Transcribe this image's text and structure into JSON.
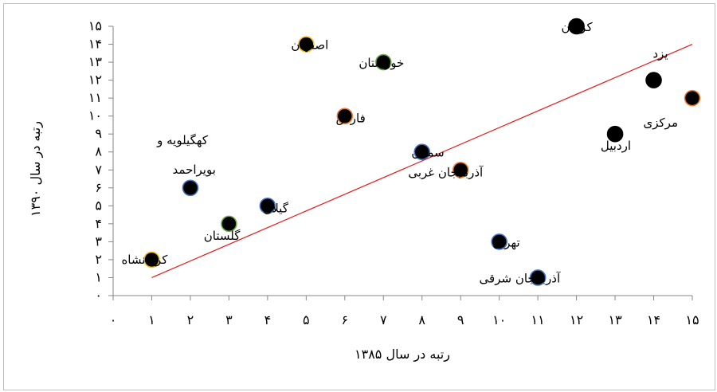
{
  "chart_data": {
    "type": "scatter",
    "title": "",
    "xlabel": "رتبه در سال ۱۳۸۵",
    "ylabel": "رتبه در سال ۱۳۹۰",
    "xlim": [
      0,
      15
    ],
    "ylim": [
      0,
      15
    ],
    "x_ticks": [
      {
        "value": 0,
        "label": "۰"
      },
      {
        "value": 1,
        "label": "۱"
      },
      {
        "value": 2,
        "label": "۲"
      },
      {
        "value": 3,
        "label": "۳"
      },
      {
        "value": 4,
        "label": "۴"
      },
      {
        "value": 5,
        "label": "۵"
      },
      {
        "value": 6,
        "label": "۶"
      },
      {
        "value": 7,
        "label": "۷"
      },
      {
        "value": 8,
        "label": "۸"
      },
      {
        "value": 9,
        "label": "۹"
      },
      {
        "value": 10,
        "label": "۱۰"
      },
      {
        "value": 11,
        "label": "۱۱"
      },
      {
        "value": 12,
        "label": "۱۲"
      },
      {
        "value": 13,
        "label": "۱۳"
      },
      {
        "value": 14,
        "label": "۱۴"
      },
      {
        "value": 15,
        "label": "۱۵"
      }
    ],
    "y_ticks": [
      {
        "value": 0,
        "label": "۰"
      },
      {
        "value": 1,
        "label": "۱"
      },
      {
        "value": 2,
        "label": "۲"
      },
      {
        "value": 3,
        "label": "۳"
      },
      {
        "value": 4,
        "label": "۴"
      },
      {
        "value": 5,
        "label": "۵"
      },
      {
        "value": 6,
        "label": "۶"
      },
      {
        "value": 7,
        "label": "۷"
      },
      {
        "value": 8,
        "label": "۸"
      },
      {
        "value": 9,
        "label": "۹"
      },
      {
        "value": 10,
        "label": "۱۰"
      },
      {
        "value": 11,
        "label": "۱۱"
      },
      {
        "value": 12,
        "label": "۱۲"
      },
      {
        "value": 13,
        "label": "۱۳"
      },
      {
        "value": 14,
        "label": "۱۴"
      },
      {
        "value": 15,
        "label": "۱۵"
      }
    ],
    "grid": false,
    "trendline": {
      "color": "#e31a1c",
      "from": [
        1,
        1
      ],
      "to": [
        15,
        14
      ]
    },
    "points": [
      {
        "label": "کرمانشاه",
        "x": 1,
        "y": 2,
        "fill": "#000000",
        "ring": "#f0c020"
      },
      {
        "label": "کهگیلویه و",
        "label2": "بویراحمد",
        "x": 2,
        "y": 6,
        "fill": "#000000",
        "ring": "#4472c4"
      },
      {
        "label": "گلستان",
        "x": 3,
        "y": 4,
        "fill": "#000000",
        "ring": "#70ad47"
      },
      {
        "label": "گیلان",
        "x": 4,
        "y": 5,
        "fill": "#000000",
        "ring": "#4472c4"
      },
      {
        "label": "اصفهان",
        "x": 5,
        "y": 14,
        "fill": "#000000",
        "ring": "#f0c020"
      },
      {
        "label": "فارس",
        "x": 6,
        "y": 10,
        "fill": "#000000",
        "ring": "#ed7d31"
      },
      {
        "label": "خوزستان",
        "x": 7,
        "y": 13,
        "fill": "#000000",
        "ring": "#70ad47"
      },
      {
        "label": "سمنان",
        "x": 8,
        "y": 8,
        "fill": "#000000",
        "ring": "#4472c4"
      },
      {
        "label": "آذربایجان غربی",
        "x": 9,
        "y": 7,
        "fill": "#000000",
        "ring": "#ed7d31"
      },
      {
        "label": "تهران",
        "x": 10,
        "y": 3,
        "fill": "#000000",
        "ring": "#4472c4"
      },
      {
        "label": "آذربایجان شرقی",
        "x": 11,
        "y": 1,
        "fill": "#000000",
        "ring": "#4472c4"
      },
      {
        "label": "کرمان",
        "x": 12,
        "y": 15,
        "fill": "#000000",
        "ring": "#000000"
      },
      {
        "label": "اردبیل",
        "x": 13,
        "y": 9,
        "fill": "#000000",
        "ring": "#000000"
      },
      {
        "label": "یزد",
        "x": 14,
        "y": 12,
        "fill": "#000000",
        "ring": "#000000"
      },
      {
        "label": "مرکزی",
        "x": 15,
        "y": 11,
        "fill": "#000000",
        "ring": "#ed7d31"
      }
    ]
  }
}
